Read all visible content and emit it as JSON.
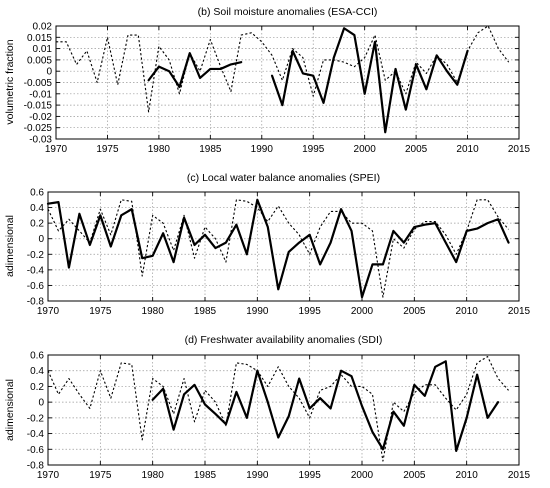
{
  "chart_data": [
    {
      "type": "line",
      "title": "(b) Soil moisture anomalies (ESA-CCI)",
      "ylabel": "volumetric fraction",
      "xlabel": "",
      "xlim": [
        1970,
        2015
      ],
      "ylim": [
        -0.03,
        0.02
      ],
      "xticks": [
        1970,
        1975,
        1980,
        1985,
        1990,
        1995,
        2000,
        2005,
        2010,
        2015
      ],
      "yticks": [
        -0.03,
        -0.025,
        -0.02,
        -0.015,
        -0.01,
        -0.005,
        0,
        0.005,
        0.01,
        0.015,
        0.02
      ],
      "ytick_labels": [
        "-0.03",
        "-0.025",
        "-0.02",
        "-0.015",
        "-0.01",
        "-0.005",
        "0",
        "0.005",
        "0.01",
        "0.015",
        "0.02"
      ],
      "grid": true,
      "series": [
        {
          "style": "dotted",
          "x": [
            1970,
            1971,
            1972,
            1973,
            1974,
            1975,
            1976,
            1977,
            1978,
            1979,
            1980,
            1981,
            1982,
            1983,
            1984,
            1985,
            1986,
            1987,
            1988,
            1989,
            1990,
            1991,
            1992,
            1993,
            1994,
            1995,
            1996,
            1997,
            1998,
            1999,
            2000,
            2001,
            2002,
            2003,
            2004,
            2005,
            2006,
            2007,
            2008,
            2009,
            2010,
            2011,
            2012,
            2013,
            2014
          ],
          "y": [
            0.013,
            0.013,
            0.003,
            0.009,
            -0.005,
            0.015,
            -0.006,
            0.016,
            0.016,
            -0.018,
            0.011,
            0.005,
            -0.01,
            0.008,
            0.0,
            0.014,
            0.002,
            -0.009,
            0.016,
            0.017,
            0.013,
            0.007,
            -0.004,
            0.01,
            0.006,
            -0.011,
            0.005,
            0.005,
            0.004,
            0.002,
            0.006,
            0.016,
            -0.004,
            0.0,
            -0.01,
            0.004,
            -0.001,
            0.007,
            0.003,
            -0.005,
            0.009,
            0.017,
            0.02,
            0.01,
            0.004
          ]
        },
        {
          "style": "solid",
          "segments": [
            {
              "x": [
                1979,
                1980,
                1981,
                1982,
                1983,
                1984,
                1985,
                1986,
                1987,
                1988
              ],
              "y": [
                -0.004,
                0.002,
                0.0,
                -0.007,
                0.008,
                -0.003,
                0.001,
                0.001,
                0.003,
                0.004
              ]
            },
            {
              "x": [
                1991,
                1992,
                1993,
                1994,
                1995,
                1996,
                1997,
                1998,
                1999,
                2000,
                2001,
                2002,
                2003,
                2004,
                2005,
                2006,
                2007,
                2008,
                2009,
                2010
              ],
              "y": [
                -0.002,
                -0.015,
                0.009,
                -0.001,
                -0.002,
                -0.014,
                0.006,
                0.019,
                0.016,
                -0.01,
                0.013,
                -0.027,
                0.001,
                -0.017,
                0.003,
                -0.008,
                0.007,
                0.0,
                -0.006,
                0.009
              ]
            }
          ]
        }
      ]
    },
    {
      "type": "line",
      "title": "(c) Local water balance anomalies (SPEI)",
      "ylabel": "adimensional",
      "xlabel": "",
      "xlim": [
        1970,
        2015
      ],
      "ylim": [
        -0.8,
        0.6
      ],
      "xticks": [
        1970,
        1975,
        1980,
        1985,
        1990,
        1995,
        2000,
        2005,
        2010,
        2015
      ],
      "yticks": [
        -0.8,
        -0.6,
        -0.4,
        -0.2,
        0,
        0.2,
        0.4,
        0.6
      ],
      "ytick_labels": [
        "-0.8",
        "-0.6",
        "-0.4",
        "-0.2",
        "0",
        "0.2",
        "0.4",
        "0.6"
      ],
      "grid": true,
      "series": [
        {
          "style": "dotted",
          "x": [
            1970,
            1971,
            1972,
            1973,
            1974,
            1975,
            1976,
            1977,
            1978,
            1979,
            1980,
            1981,
            1982,
            1983,
            1984,
            1985,
            1986,
            1987,
            1988,
            1989,
            1990,
            1991,
            1992,
            1993,
            1994,
            1995,
            1996,
            1997,
            1998,
            1999,
            2000,
            2001,
            2002,
            2003,
            2004,
            2005,
            2006,
            2007,
            2008,
            2009,
            2010,
            2011,
            2012,
            2013,
            2014
          ],
          "y": [
            0.38,
            0.1,
            0.25,
            0.1,
            -0.05,
            0.38,
            0.05,
            0.5,
            0.48,
            -0.48,
            0.3,
            0.2,
            -0.15,
            0.3,
            -0.25,
            0.15,
            0.0,
            -0.3,
            0.5,
            0.48,
            0.4,
            0.22,
            0.42,
            0.2,
            0.05,
            -0.2,
            0.15,
            0.35,
            0.35,
            0.2,
            0.2,
            0.1,
            -0.75,
            0.0,
            -0.12,
            0.12,
            0.22,
            0.22,
            0.05,
            -0.2,
            0.1,
            0.5,
            0.5,
            0.28,
            0.12
          ]
        },
        {
          "style": "solid",
          "x": [
            1970,
            1971,
            1972,
            1973,
            1974,
            1975,
            1976,
            1977,
            1978,
            1979,
            1980,
            1981,
            1982,
            1983,
            1984,
            1985,
            1986,
            1987,
            1988,
            1989,
            1990,
            1991,
            1992,
            1993,
            1994,
            1995,
            1996,
            1997,
            1998,
            1999,
            2000,
            2001,
            2002,
            2003,
            2004,
            2005,
            2006,
            2007,
            2008,
            2009,
            2010,
            2011,
            2012,
            2013,
            2014
          ],
          "y": [
            0.45,
            0.47,
            -0.37,
            0.32,
            -0.08,
            0.3,
            -0.1,
            0.3,
            0.38,
            -0.25,
            -0.22,
            0.07,
            -0.3,
            0.27,
            -0.08,
            0.05,
            -0.12,
            -0.05,
            0.18,
            -0.2,
            0.5,
            0.15,
            -0.65,
            -0.17,
            -0.05,
            0.05,
            -0.33,
            -0.05,
            0.38,
            0.1,
            -0.75,
            -0.33,
            -0.33,
            0.1,
            -0.05,
            0.15,
            0.18,
            0.2,
            -0.05,
            -0.3,
            0.1,
            0.13,
            0.2,
            0.25,
            -0.05
          ]
        }
      ]
    },
    {
      "type": "line",
      "title": "(d) Freshwater availability anomalies (SDI)",
      "ylabel": "adimensional",
      "xlabel": "",
      "xlim": [
        1970,
        2015
      ],
      "ylim": [
        -0.8,
        0.6
      ],
      "xticks": [
        1970,
        1975,
        1980,
        1985,
        1990,
        1995,
        2000,
        2005,
        2010,
        2015
      ],
      "yticks": [
        -0.8,
        -0.6,
        -0.4,
        -0.2,
        0,
        0.2,
        0.4,
        0.6
      ],
      "ytick_labels": [
        "-0.8",
        "-0.6",
        "-0.4",
        "-0.2",
        "0",
        "0.2",
        "0.4",
        "0.6"
      ],
      "grid": true,
      "series": [
        {
          "style": "dotted",
          "x": [
            1970,
            1971,
            1972,
            1973,
            1974,
            1975,
            1976,
            1977,
            1978,
            1979,
            1980,
            1981,
            1982,
            1983,
            1984,
            1985,
            1986,
            1987,
            1988,
            1989,
            1990,
            1991,
            1992,
            1993,
            1994,
            1995,
            1996,
            1997,
            1998,
            1999,
            2000,
            2001,
            2002,
            2003,
            2004,
            2005,
            2006,
            2007,
            2008,
            2009,
            2010,
            2011,
            2012,
            2013,
            2014
          ],
          "y": [
            0.4,
            0.1,
            0.3,
            0.1,
            -0.08,
            0.4,
            0.05,
            0.5,
            0.48,
            -0.48,
            0.3,
            0.2,
            -0.15,
            0.3,
            -0.25,
            0.15,
            0.0,
            -0.3,
            0.5,
            0.48,
            0.4,
            0.2,
            0.45,
            0.2,
            0.05,
            -0.2,
            0.15,
            0.2,
            0.35,
            0.2,
            0.2,
            0.1,
            -0.75,
            0.0,
            -0.12,
            0.12,
            0.22,
            0.22,
            0.05,
            -0.1,
            0.1,
            0.5,
            0.58,
            0.3,
            0.15
          ]
        },
        {
          "style": "solid",
          "x": [
            1980,
            1981,
            1982,
            1983,
            1984,
            1985,
            1986,
            1987,
            1988,
            1989,
            1990,
            1991,
            1992,
            1993,
            1994,
            1995,
            1996,
            1997,
            1998,
            1999,
            2000,
            2001,
            2002,
            2003,
            2004,
            2005,
            2006,
            2007,
            2008,
            2009,
            2010,
            2011,
            2012,
            2013
          ],
          "y": [
            0.03,
            0.17,
            -0.35,
            0.1,
            0.22,
            -0.03,
            -0.15,
            -0.28,
            0.13,
            -0.2,
            0.4,
            0.0,
            -0.45,
            -0.18,
            0.3,
            -0.08,
            0.05,
            -0.08,
            0.4,
            0.33,
            -0.05,
            -0.38,
            -0.6,
            -0.12,
            -0.3,
            0.22,
            0.08,
            0.45,
            0.52,
            -0.62,
            -0.2,
            0.35,
            -0.2,
            0.0
          ]
        }
      ]
    }
  ]
}
